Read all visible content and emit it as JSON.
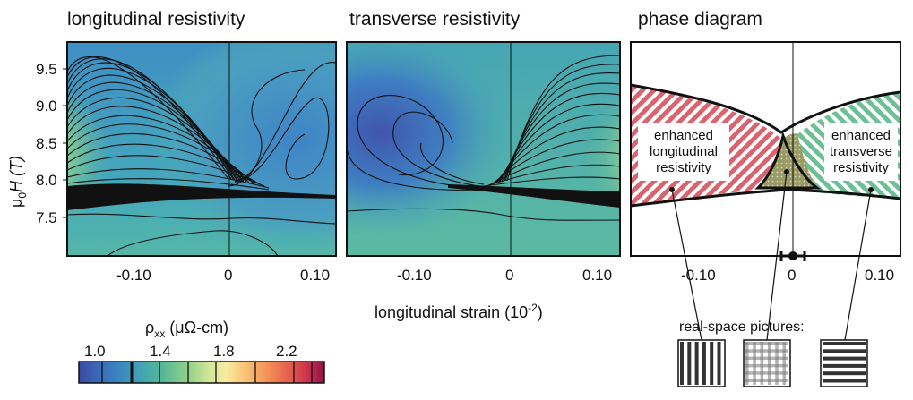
{
  "panels": {
    "longitudinal_title": "longitudinal resistivity",
    "transverse_title": "transverse resistivity",
    "phase_title": "phase diagram"
  },
  "axes": {
    "y_label_mu": "μ",
    "y_label_sub": "0",
    "y_label_rest": "H (T)",
    "x_label": "longitudinal strain (10",
    "x_label_exp": "-2",
    "x_label_close": ")"
  },
  "colorbar": {
    "label_rho": "ρ",
    "label_sub": "xx",
    "label_units": " (μΩ-cm)",
    "stops": [
      "#3a4aa5",
      "#3a78c0",
      "#3fa0b8",
      "#56b896",
      "#8fd08a",
      "#d8e89a",
      "#f7eca0",
      "#f9c276",
      "#f18b55",
      "#e0504c",
      "#c0284d",
      "#8c1440"
    ]
  },
  "phase": {
    "region_long_lines": [
      "enhanced",
      "longitudinal",
      "resistivity"
    ],
    "region_trans_lines": [
      "enhanced",
      "transverse",
      "resistivity"
    ],
    "real_space_label": "real-space pictures:",
    "long_color": "#d96470",
    "trans_color": "#6dbf95",
    "center_color": "#8a8a5a"
  },
  "chart_data": [
    {
      "type": "heatmap",
      "title": "longitudinal resistivity",
      "xlabel": "longitudinal strain (10^-2)",
      "ylabel": "μ0H (T)",
      "x_ticks": [
        -0.1,
        0,
        0.1
      ],
      "x_tick_labels": [
        "-0.10",
        "0",
        "0.10"
      ],
      "y_ticks": [
        7.5,
        8.0,
        8.5,
        9.0,
        9.5
      ],
      "y_tick_labels": [
        "7.5",
        "8.0",
        "8.5",
        "9.0",
        "9.5"
      ],
      "xlim": [
        -0.175,
        0.125
      ],
      "ylim": [
        7.0,
        9.85
      ],
      "description_of_peak": {
        "strain_side": "negative",
        "field_T": 8.3,
        "max_rho": 2.2
      }
    },
    {
      "type": "heatmap",
      "title": "transverse resistivity",
      "xlabel": "longitudinal strain (10^-2)",
      "x_ticks": [
        -0.1,
        0,
        0.1
      ],
      "x_tick_labels": [
        "-0.10",
        "0",
        "0.10"
      ],
      "y_ticks": [
        7.5,
        8.0,
        8.5,
        9.0,
        9.5
      ],
      "xlim": [
        -0.175,
        0.125
      ],
      "ylim": [
        7.0,
        9.85
      ],
      "description_of_peak": {
        "strain_side": "positive",
        "field_T": 8.3,
        "max_rho": 2.2
      }
    },
    {
      "type": "heatmap",
      "title": "phase diagram",
      "x_ticks": [
        -0.1,
        0,
        0.1
      ],
      "x_tick_labels": [
        "-0.10",
        "0",
        "0.10"
      ],
      "xlim": [
        -0.175,
        0.125
      ],
      "ylim": [
        7.0,
        9.85
      ]
    },
    {
      "type": "heatmap",
      "title": "colorbar",
      "ticks": [
        1.0,
        1.4,
        1.8,
        2.2
      ],
      "tick_labels": [
        "1.0",
        "1.4",
        "1.8",
        "2.2"
      ],
      "range": [
        0.8,
        2.5
      ]
    }
  ]
}
